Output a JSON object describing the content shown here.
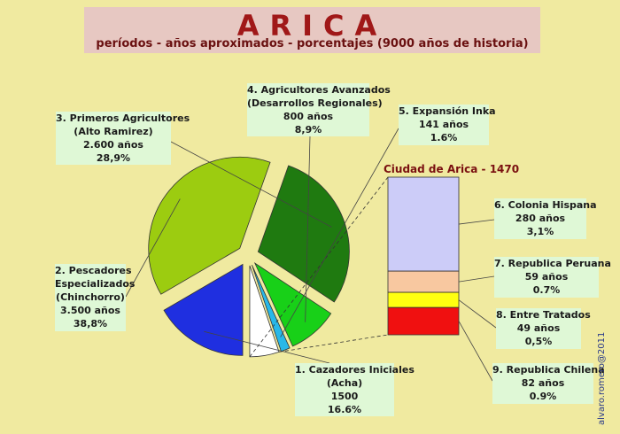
{
  "header": {
    "title": "ARICA",
    "subtitle": "períodos - años aproximados - porcentajes (9000 años de historia)"
  },
  "credit": "alvaro.romero@2011",
  "chart_data": [
    {
      "type": "pie",
      "slices": [
        {
          "id": "s1",
          "lines": [
            "1. Cazadores Iniciales",
            "(Acha)",
            "1500",
            "16.6%"
          ],
          "value": 16.6,
          "color": "#1f2fe0"
        },
        {
          "id": "s2",
          "lines": [
            "2. Pescadores",
            "Especializados",
            "(Chinchorro)",
            "3.500 años",
            "38,8%"
          ],
          "value": 38.8,
          "color": "#9ccc10"
        },
        {
          "id": "s3",
          "lines": [
            "3. Primeros Agricultores",
            "(Alto Ramirez)",
            "2.600 años",
            "28,9%"
          ],
          "value": 28.9,
          "color": "#1f7a10"
        },
        {
          "id": "s4",
          "lines": [
            "4. Agricultores Avanzados",
            "(Desarrollos Regionales)",
            "800 años",
            "8,9%"
          ],
          "value": 8.9,
          "color": "#18d018"
        },
        {
          "id": "s5",
          "lines": [
            "5. Expansión Inka",
            "141 años",
            "1.6%"
          ],
          "value": 1.6,
          "color": "#28b8e8"
        },
        {
          "id": "s6",
          "lines": [],
          "value": 5.2,
          "color": "#ffffff"
        }
      ]
    },
    {
      "type": "bar",
      "stacked": true,
      "title": "Ciudad de Arica - 1470",
      "segments": [
        {
          "id": "b6",
          "lines": [
            "6. Colonia Hispana",
            "280 años",
            "3,1%"
          ],
          "value": 3.1,
          "color": "#ccccf8"
        },
        {
          "id": "b7",
          "lines": [
            "7. Republica Peruana",
            "59 años",
            "0.7%"
          ],
          "value": 0.7,
          "color": "#f8c8a0"
        },
        {
          "id": "b8",
          "lines": [
            "8. Entre Tratados",
            "49 años",
            "0,5%"
          ],
          "value": 0.5,
          "color": "#ffff10"
        },
        {
          "id": "b9",
          "lines": [
            "9. Republica Chilena",
            "82 años",
            "0.9%"
          ],
          "value": 0.9,
          "color": "#f01010"
        }
      ]
    }
  ]
}
